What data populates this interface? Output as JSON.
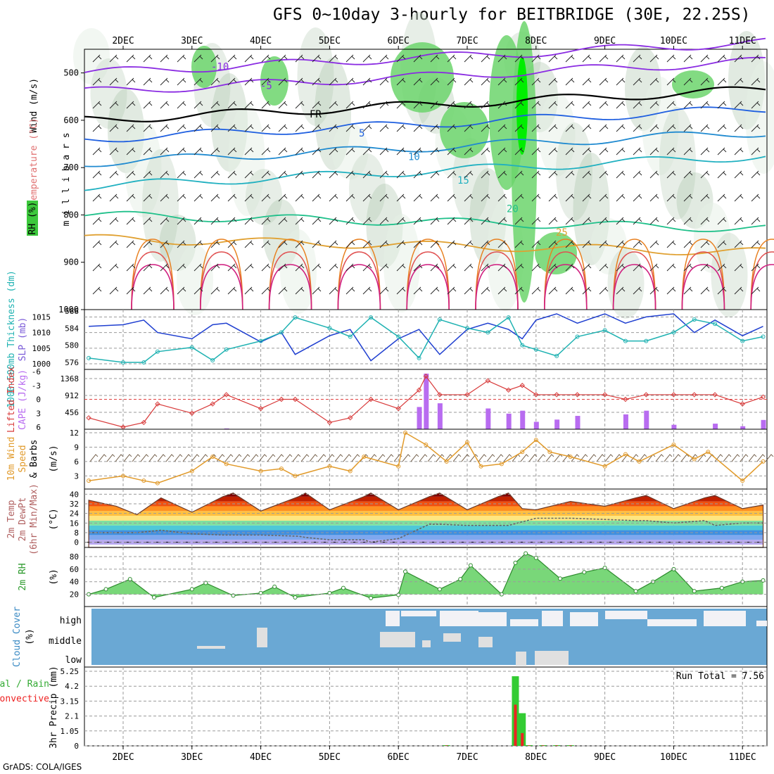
{
  "title": "GFS 0~10day 3-hourly for BEITBRIDGE (30E, 22.25S)",
  "footer": "GrADS: COLA/IGES",
  "colors": {
    "grid": "#9a9a9a",
    "slp": "#1f3fd0",
    "thickness": "#1fb2b2",
    "lifted": "#d83a3a",
    "cape": "#b86cf0",
    "wind_speed": "#e19a2a",
    "barb": "#6b5640",
    "rh_line": "#2c8a2c",
    "cloud": "#6aa8d4",
    "cloud_clear": "#f2f2f6",
    "cloud_grey": "#e0e0e0",
    "precip_total": "#33cc33",
    "precip_conv": "#ee2222"
  },
  "chart_data": [
    {
      "type": "heatmap",
      "panel": "upper-air",
      "xlabel": "",
      "ylabel": "m i l l i b a r s",
      "side_labels": [
        "RH (%)",
        "Temperature (°C)",
        "Wind (m/s)"
      ],
      "x_ticks": [
        "2DEC",
        "3DEC",
        "4DEC",
        "5DEC",
        "6DEC",
        "7DEC",
        "8DEC",
        "9DEC",
        "10DEC",
        "11DEC"
      ],
      "y_ticks": [
        500,
        600,
        700,
        800,
        900,
        1000
      ],
      "ylim": [
        1000,
        450
      ],
      "temperature_contours": [
        {
          "label": "-10",
          "level": -10,
          "pressure_mb": 500
        },
        {
          "label": "-5",
          "level": -5,
          "pressure_mb": 540
        },
        {
          "label": "FR",
          "level": 0,
          "pressure_mb": 600
        },
        {
          "label": "5",
          "level": 5,
          "pressure_mb": 640
        },
        {
          "label": "10",
          "level": 10,
          "pressure_mb": 690
        },
        {
          "label": "15",
          "level": 15,
          "pressure_mb": 740
        },
        {
          "label": "20",
          "level": 20,
          "pressure_mb": 800
        },
        {
          "label": "25",
          "level": 25,
          "pressure_mb": 850
        }
      ]
    },
    {
      "type": "line",
      "panel": "slp-thickness",
      "left_label": "1000-500mb Thickness (dm)",
      "right_label": "SLP (mb)",
      "thickness_ticks": [
        576,
        580,
        584,
        588
      ],
      "slp_ticks": [
        1000,
        1005,
        1010,
        1015
      ],
      "x_days": [
        1.5,
        2,
        2.3,
        2.5,
        3,
        3.3,
        3.5,
        4,
        4.3,
        4.5,
        5,
        5.3,
        5.6,
        6,
        6.3,
        6.6,
        7,
        7.3,
        7.6,
        7.8,
        8,
        8.3,
        8.6,
        9,
        9.3,
        9.6,
        10,
        10.3,
        10.6,
        11,
        11.3
      ],
      "slp": [
        1012,
        1012.5,
        1014,
        1010,
        1008,
        1012.5,
        1013,
        1007,
        1010,
        1003,
        1009,
        1011,
        1001,
        1008,
        1011,
        1003,
        1011,
        1013,
        1011,
        1008,
        1014,
        1016,
        1013,
        1016,
        1013,
        1015,
        1016,
        1010,
        1014,
        1009,
        1012
      ],
      "thickness": [
        577,
        576,
        576,
        578.5,
        579.5,
        576.5,
        579,
        581,
        583,
        586.5,
        584,
        582,
        586.5,
        582,
        577,
        586,
        584,
        583,
        586.5,
        580,
        579,
        577.5,
        582,
        583.5,
        581,
        581,
        583,
        586,
        585,
        581,
        582
      ]
    },
    {
      "type": "bar",
      "panel": "cape-lifted-index",
      "left_label": "Lifted Index",
      "right_label": "CAPE (J/kg)",
      "lifted_ticks": [
        -6,
        -3,
        0,
        3,
        6
      ],
      "cape_ticks": [
        456,
        912,
        1368
      ],
      "x_days": [
        1.5,
        2,
        2.3,
        2.5,
        3,
        3.3,
        3.5,
        4,
        4.3,
        4.5,
        5,
        5.3,
        5.6,
        6,
        6.3,
        6.4,
        6.6,
        7,
        7.3,
        7.6,
        7.8,
        8,
        8.3,
        8.6,
        9,
        9.3,
        9.6,
        10,
        10.3,
        10.6,
        11,
        11.3
      ],
      "lifted_index": [
        4,
        6,
        5,
        1,
        3,
        1,
        -1,
        2,
        0,
        0,
        5,
        4,
        0,
        2,
        -2,
        -5,
        -1,
        -1,
        -4,
        -2,
        -3,
        -1,
        -1,
        -1,
        -1,
        0,
        -1,
        -1,
        -1,
        -1,
        1,
        -0.5
      ],
      "cape": [
        0,
        0,
        0,
        0,
        0,
        0,
        20,
        0,
        0,
        0,
        0,
        0,
        0,
        0,
        600,
        1500,
        700,
        0,
        560,
        420,
        500,
        200,
        260,
        360,
        0,
        400,
        500,
        120,
        0,
        150,
        80,
        250
      ]
    },
    {
      "type": "line",
      "panel": "10m-wind",
      "left_label": "10m Wind Speed & Barbs (m/s)",
      "y_ticks": [
        3,
        6,
        9,
        12
      ],
      "x_days": [
        1.5,
        2,
        2.3,
        2.5,
        3,
        3.3,
        3.5,
        4,
        4.3,
        4.5,
        5,
        5.3,
        5.5,
        6,
        6.1,
        6.4,
        6.7,
        7,
        7.2,
        7.5,
        7.8,
        8,
        8.2,
        8.5,
        9,
        9.3,
        9.5,
        10,
        10.3,
        10.5,
        11,
        11.3
      ],
      "speed": [
        2,
        3,
        2,
        1.5,
        4,
        7,
        5.5,
        4,
        4.5,
        3,
        5,
        4,
        7,
        5,
        12,
        9.5,
        6,
        10,
        5,
        5.5,
        8,
        10.5,
        8,
        7,
        5,
        7.5,
        6,
        9.5,
        6.5,
        8,
        2,
        6
      ]
    },
    {
      "type": "area",
      "panel": "2m-temp",
      "left_label": "2m Temp 2m DewPt (6hr Min/Max) (°C)",
      "y_ticks": [
        0,
        8,
        16,
        24,
        32,
        40
      ],
      "x_days": [
        1.5,
        1.9,
        2.2,
        2.55,
        3,
        3.45,
        3.6,
        4,
        4.55,
        4.65,
        5,
        5.5,
        5.6,
        6,
        6.45,
        6.6,
        7,
        7.45,
        7.6,
        7.8,
        8,
        8.5,
        9,
        9.45,
        9.6,
        10,
        10.45,
        10.6,
        11,
        11.3
      ],
      "temperature": [
        35,
        30,
        23,
        37,
        25,
        38,
        41,
        26,
        38,
        41,
        27,
        38,
        41,
        27,
        38,
        41,
        27,
        38,
        41,
        28,
        27,
        34,
        30,
        37,
        39,
        28,
        37,
        39,
        28,
        31
      ],
      "dewpoint": [
        8,
        8,
        8,
        10,
        7,
        6,
        6,
        6,
        5,
        4,
        2,
        2,
        0,
        3,
        15,
        15,
        14,
        14,
        14,
        17,
        20,
        20,
        19,
        18,
        18,
        16,
        18,
        14,
        16,
        16
      ]
    },
    {
      "type": "area",
      "panel": "2m-rh",
      "left_label": "2m RH (%)",
      "y_ticks": [
        20,
        40,
        60,
        80
      ],
      "x_days": [
        1.5,
        1.75,
        2.1,
        2.45,
        3,
        3.2,
        3.6,
        4,
        4.2,
        4.5,
        5,
        5.2,
        5.6,
        6,
        6.1,
        6.6,
        6.9,
        7.05,
        7.5,
        7.7,
        7.85,
        8,
        8.35,
        8.7,
        9,
        9.45,
        9.7,
        10,
        10.3,
        10.7,
        11,
        11.3
      ],
      "rh": [
        20,
        28,
        44,
        15,
        28,
        38,
        18,
        22,
        32,
        15,
        22,
        30,
        14,
        19,
        56,
        28,
        44,
        66,
        20,
        70,
        85,
        78,
        45,
        55,
        62,
        25,
        40,
        60,
        25,
        30,
        40,
        42
      ]
    },
    {
      "type": "heatmap",
      "panel": "cloud-cover",
      "left_label": "Cloud Cover (%)",
      "levels": [
        "high",
        "middle",
        "low"
      ]
    },
    {
      "type": "bar",
      "panel": "precip",
      "left_label": "Total / Rain Convective",
      "ylabel": "3hr Precip (mm)",
      "y_ticks": [
        0,
        1.05,
        2.1,
        3.15,
        4.2,
        5.25
      ],
      "run_total_label": "Run Total = 7.56",
      "x_days": [
        6.7,
        7.7,
        7.8,
        7.9,
        8.1,
        8.3,
        8.5
      ],
      "total": [
        0.05,
        4.9,
        2.3,
        0.05,
        0.05,
        0.05,
        0.05
      ],
      "convective": [
        0.03,
        2.9,
        0.9,
        0.03,
        0.03,
        0.03,
        0.03
      ]
    }
  ]
}
